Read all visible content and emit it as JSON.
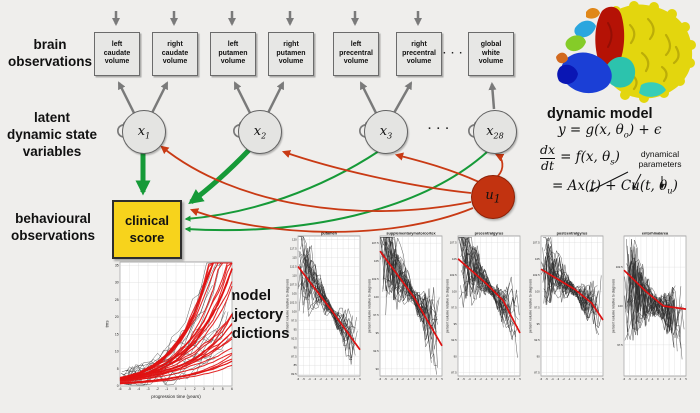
{
  "labels": {
    "brain_observations": [
      "brain",
      "observations"
    ],
    "latent_state": [
      "latent",
      "dynamic state",
      "variables"
    ],
    "behavioural": [
      "behavioural",
      "observations"
    ],
    "model_trajectory": [
      "model",
      "trajectory",
      "predictions"
    ],
    "dynamic_model": "dynamic model",
    "dots_boxes": "· · ·",
    "dots_states": "· · ·"
  },
  "diagram": {
    "boxes": [
      {
        "lines": [
          "left",
          "caudate",
          "volume"
        ]
      },
      {
        "lines": [
          "right",
          "caudate",
          "volume"
        ]
      },
      {
        "lines": [
          "left",
          "putamen",
          "volume"
        ]
      },
      {
        "lines": [
          "right",
          "putamen",
          "volume"
        ]
      },
      {
        "lines": [
          "left",
          "precentral",
          "volume"
        ]
      },
      {
        "lines": [
          "right",
          "precentral",
          "volume"
        ]
      },
      {
        "lines": [
          "global",
          "white",
          "volume"
        ]
      }
    ],
    "states": [
      {
        "base": "x",
        "sub": "1"
      },
      {
        "base": "x",
        "sub": "2"
      },
      {
        "base": "x",
        "sub": "3"
      },
      {
        "base": "x",
        "sub": "28"
      }
    ],
    "input_node": {
      "base": "u",
      "sub": "1"
    },
    "clinical_box": [
      "clinical",
      "score"
    ],
    "colors": {
      "green_arrow": "#169a38",
      "red_arrow": "#c93a14",
      "gray_arrow": "#7a7a7a",
      "yellow_box": "#f7d31c",
      "input_fill": "#c23310",
      "node_fill": "#e4e4e2"
    }
  },
  "equations": {
    "eq1": {
      "pre": "y = g(x, θ",
      "sub": "o",
      "post": ") + ϵ"
    },
    "eq2": {
      "num": "dx",
      "den": "dt",
      "pre": "= f(x, θ",
      "sub": "s",
      "post": ")"
    },
    "eq3": {
      "pre": "= Ax(t) + Cu(t, θ",
      "sub": "u",
      "post": ")"
    },
    "annotation": [
      "dynamical",
      "parameters"
    ]
  },
  "chart_data": [
    {
      "id": "clinical_trajectories",
      "type": "line",
      "kind": "rise",
      "title": "",
      "xlabel": "progression time (years)",
      "ylabel": "tms",
      "xlim": [
        -6,
        6
      ],
      "ylim": [
        0,
        36
      ],
      "xtick_step": 1,
      "yticks": {
        "min": 0,
        "max": 35,
        "step": 5
      },
      "red_mean": [
        [
          -6,
          1.5
        ],
        [
          -4,
          2.6
        ],
        [
          -2,
          4.4
        ],
        [
          0,
          7.4
        ],
        [
          2,
          12.5
        ],
        [
          4,
          21
        ],
        [
          5,
          27
        ],
        [
          6,
          34
        ]
      ],
      "n_model_curves": 30,
      "n_subject_lines": 18,
      "legend_note": "red = model-predicted clinical-score trajectories, black = observed subjects"
    },
    {
      "id": "putamen",
      "type": "line",
      "kind": "decline",
      "title": "putamen",
      "ylabel": "percent volume relative to diagnosis",
      "xlim": [
        -6,
        5
      ],
      "ylim": [
        82,
        121
      ],
      "xtick_step": 1,
      "yticks": {
        "min": 82.5,
        "max": 120,
        "step": 2.5
      },
      "red_trend": [
        [
          -6,
          112.5
        ],
        [
          0,
          100.2
        ],
        [
          5,
          89.3
        ]
      ],
      "n_subject_lines": 26,
      "noise_amp": 3.4
    },
    {
      "id": "supplementarymotorcortex",
      "type": "line",
      "kind": "decline",
      "title": "supplementarymotorcortex",
      "ylabel": "percent volume relative to diagnosis",
      "xlim": [
        -6,
        5
      ],
      "ylim": [
        89,
        108.5
      ],
      "xtick_step": 1,
      "yticks": {
        "min": 90,
        "max": 107.5,
        "step": 2.5
      },
      "red_trend": [
        [
          -6,
          106.4
        ],
        [
          0,
          100
        ],
        [
          5,
          93.2
        ]
      ],
      "n_subject_lines": 26,
      "noise_amp": 2.6
    },
    {
      "id": "precentralgyrus",
      "type": "line",
      "kind": "decline",
      "title": "precentralgyrus",
      "ylabel": "percent volume relative to diagnosis",
      "xlim": [
        -6,
        5
      ],
      "ylim": [
        87,
        108.5
      ],
      "xtick_step": 1,
      "yticks": {
        "min": 87.5,
        "max": 107.5,
        "step": 2.5
      },
      "red_trend": [
        [
          -6,
          105
        ],
        [
          -1,
          101.2
        ],
        [
          2,
          98.6
        ],
        [
          5,
          93.6
        ]
      ],
      "n_subject_lines": 26,
      "noise_amp": 2.4
    },
    {
      "id": "postcentralgyrus",
      "type": "line",
      "kind": "decline",
      "title": "postcentralgyrus",
      "ylabel": "percent volume relative to diagnosis",
      "xlim": [
        -6,
        5
      ],
      "ylim": [
        87,
        108.5
      ],
      "xtick_step": 1,
      "yticks": {
        "min": 87.5,
        "max": 107.5,
        "step": 2.5
      },
      "red_trend": [
        [
          -6,
          103.4
        ],
        [
          0,
          100.3
        ],
        [
          3,
          98.2
        ],
        [
          5,
          95.6
        ]
      ],
      "n_subject_lines": 26,
      "noise_amp": 2.2
    },
    {
      "id": "entorhinalarea",
      "type": "line",
      "kind": "decline",
      "title": "entorhinalarea",
      "ylabel": "percent volume relative to diagnosis",
      "xlim": [
        -6,
        5
      ],
      "ylim": [
        95.5,
        104.5
      ],
      "xtick_step": 1,
      "yticks": {
        "min": 97.5,
        "max": 102.5,
        "step": 2.5
      },
      "red_trend": [
        [
          -6,
          102.3
        ],
        [
          -2,
          100.9
        ],
        [
          1,
          100
        ],
        [
          5,
          99.8
        ]
      ],
      "n_subject_lines": 26,
      "noise_amp": 1.6
    }
  ]
}
